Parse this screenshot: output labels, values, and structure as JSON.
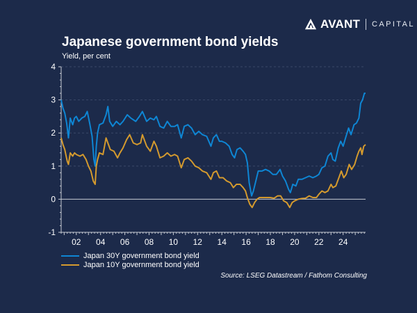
{
  "brand": {
    "name": "AVANT",
    "sub": "CAPITAL",
    "icon": "avant-logo-mark-icon"
  },
  "colors": {
    "background": "#1c2a4a",
    "series_30y": "#0e86d4",
    "series_10y": "#d49a2e",
    "zero_line": "#c8ccd4",
    "axis": "#c8ccd4",
    "grid": "#3a4868"
  },
  "chart_data": {
    "type": "line",
    "title": "Japanese government bond yields",
    "subtitle": "Yield, per cent",
    "xlabel": "",
    "ylabel": "Yield, per cent",
    "xlim": [
      2000.75,
      2025.85
    ],
    "ylim": [
      -1,
      4
    ],
    "yticks": [
      4,
      3,
      2,
      1,
      0,
      -1
    ],
    "ytick_labels": [
      "4",
      "3",
      "2",
      "1",
      "0",
      "-1"
    ],
    "xticks": [
      2002,
      2004,
      2006,
      2008,
      2010,
      2012,
      2014,
      2016,
      2018,
      2020,
      2022,
      2024
    ],
    "xtick_labels": [
      "02",
      "04",
      "06",
      "08",
      "10",
      "12",
      "14",
      "16",
      "18",
      "20",
      "22",
      "24"
    ],
    "grid": "horizontal-dashed",
    "legend_position": "bottom-left",
    "source": "Source: LSEG Datastream / Fathom Consulting",
    "series": [
      {
        "name": "Japan 30Y government bond yield",
        "color": "#0e86d4",
        "points": [
          [
            2000.75,
            3.0
          ],
          [
            2000.9,
            2.75
          ],
          [
            2001.05,
            2.6
          ],
          [
            2001.2,
            2.3
          ],
          [
            2001.35,
            1.85
          ],
          [
            2001.5,
            2.45
          ],
          [
            2001.7,
            2.25
          ],
          [
            2001.85,
            2.45
          ],
          [
            2002.0,
            2.5
          ],
          [
            2002.2,
            2.35
          ],
          [
            2002.45,
            2.45
          ],
          [
            2002.7,
            2.5
          ],
          [
            2002.9,
            2.65
          ],
          [
            2003.1,
            2.3
          ],
          [
            2003.3,
            1.9
          ],
          [
            2003.45,
            1.2
          ],
          [
            2003.55,
            1.0
          ],
          [
            2003.65,
            1.6
          ],
          [
            2003.75,
            2.0
          ],
          [
            2003.9,
            2.25
          ],
          [
            2004.2,
            2.3
          ],
          [
            2004.45,
            2.55
          ],
          [
            2004.6,
            2.8
          ],
          [
            2004.75,
            2.35
          ],
          [
            2005.0,
            2.2
          ],
          [
            2005.3,
            2.35
          ],
          [
            2005.6,
            2.25
          ],
          [
            2005.85,
            2.35
          ],
          [
            2006.2,
            2.55
          ],
          [
            2006.5,
            2.45
          ],
          [
            2006.9,
            2.35
          ],
          [
            2007.2,
            2.5
          ],
          [
            2007.45,
            2.65
          ],
          [
            2007.8,
            2.35
          ],
          [
            2008.1,
            2.45
          ],
          [
            2008.4,
            2.4
          ],
          [
            2008.6,
            2.5
          ],
          [
            2008.9,
            2.2
          ],
          [
            2009.2,
            2.15
          ],
          [
            2009.5,
            2.35
          ],
          [
            2009.8,
            2.2
          ],
          [
            2010.1,
            2.2
          ],
          [
            2010.35,
            2.25
          ],
          [
            2010.65,
            1.85
          ],
          [
            2010.9,
            2.2
          ],
          [
            2011.2,
            2.25
          ],
          [
            2011.5,
            2.15
          ],
          [
            2011.8,
            1.95
          ],
          [
            2012.1,
            2.05
          ],
          [
            2012.4,
            1.95
          ],
          [
            2012.75,
            1.9
          ],
          [
            2013.1,
            1.6
          ],
          [
            2013.3,
            1.85
          ],
          [
            2013.55,
            1.95
          ],
          [
            2013.8,
            1.75
          ],
          [
            2014.0,
            1.75
          ],
          [
            2014.3,
            1.7
          ],
          [
            2014.6,
            1.6
          ],
          [
            2014.85,
            1.35
          ],
          [
            2015.05,
            1.25
          ],
          [
            2015.25,
            1.5
          ],
          [
            2015.5,
            1.55
          ],
          [
            2015.75,
            1.45
          ],
          [
            2015.95,
            1.35
          ],
          [
            2016.1,
            1.1
          ],
          [
            2016.25,
            0.5
          ],
          [
            2016.45,
            0.1
          ],
          [
            2016.6,
            0.25
          ],
          [
            2016.8,
            0.55
          ],
          [
            2017.0,
            0.85
          ],
          [
            2017.3,
            0.85
          ],
          [
            2017.6,
            0.9
          ],
          [
            2017.9,
            0.85
          ],
          [
            2018.2,
            0.75
          ],
          [
            2018.5,
            0.75
          ],
          [
            2018.8,
            0.9
          ],
          [
            2019.0,
            0.7
          ],
          [
            2019.25,
            0.55
          ],
          [
            2019.5,
            0.3
          ],
          [
            2019.65,
            0.2
          ],
          [
            2019.85,
            0.45
          ],
          [
            2020.1,
            0.4
          ],
          [
            2020.3,
            0.6
          ],
          [
            2020.6,
            0.6
          ],
          [
            2020.9,
            0.65
          ],
          [
            2021.2,
            0.7
          ],
          [
            2021.5,
            0.65
          ],
          [
            2021.8,
            0.7
          ],
          [
            2022.0,
            0.75
          ],
          [
            2022.25,
            0.95
          ],
          [
            2022.5,
            1.0
          ],
          [
            2022.75,
            1.3
          ],
          [
            2023.0,
            1.4
          ],
          [
            2023.15,
            1.2
          ],
          [
            2023.35,
            1.15
          ],
          [
            2023.6,
            1.55
          ],
          [
            2023.8,
            1.75
          ],
          [
            2024.0,
            1.6
          ],
          [
            2024.2,
            1.85
          ],
          [
            2024.45,
            2.15
          ],
          [
            2024.65,
            1.95
          ],
          [
            2024.9,
            2.25
          ],
          [
            2025.1,
            2.3
          ],
          [
            2025.3,
            2.45
          ],
          [
            2025.45,
            2.9
          ],
          [
            2025.6,
            3.0
          ],
          [
            2025.75,
            3.2
          ],
          [
            2025.85,
            3.2
          ]
        ]
      },
      {
        "name": "Japan 10Y government bond yield",
        "color": "#d49a2e",
        "points": [
          [
            2000.75,
            1.85
          ],
          [
            2000.9,
            1.65
          ],
          [
            2001.05,
            1.5
          ],
          [
            2001.25,
            1.15
          ],
          [
            2001.35,
            1.05
          ],
          [
            2001.5,
            1.4
          ],
          [
            2001.7,
            1.3
          ],
          [
            2001.85,
            1.4
          ],
          [
            2002.0,
            1.35
          ],
          [
            2002.3,
            1.3
          ],
          [
            2002.55,
            1.35
          ],
          [
            2002.8,
            1.2
          ],
          [
            2003.0,
            1.0
          ],
          [
            2003.2,
            0.85
          ],
          [
            2003.4,
            0.55
          ],
          [
            2003.55,
            0.45
          ],
          [
            2003.65,
            1.0
          ],
          [
            2003.75,
            1.2
          ],
          [
            2003.9,
            1.4
          ],
          [
            2004.2,
            1.35
          ],
          [
            2004.45,
            1.85
          ],
          [
            2004.6,
            1.7
          ],
          [
            2004.8,
            1.5
          ],
          [
            2005.1,
            1.45
          ],
          [
            2005.4,
            1.25
          ],
          [
            2005.6,
            1.4
          ],
          [
            2005.85,
            1.55
          ],
          [
            2006.15,
            1.8
          ],
          [
            2006.4,
            1.95
          ],
          [
            2006.7,
            1.7
          ],
          [
            2007.0,
            1.65
          ],
          [
            2007.3,
            1.7
          ],
          [
            2007.45,
            1.95
          ],
          [
            2007.8,
            1.6
          ],
          [
            2008.1,
            1.45
          ],
          [
            2008.4,
            1.75
          ],
          [
            2008.6,
            1.6
          ],
          [
            2008.9,
            1.25
          ],
          [
            2009.2,
            1.3
          ],
          [
            2009.5,
            1.4
          ],
          [
            2009.8,
            1.3
          ],
          [
            2010.1,
            1.35
          ],
          [
            2010.35,
            1.3
          ],
          [
            2010.65,
            0.95
          ],
          [
            2010.9,
            1.2
          ],
          [
            2011.2,
            1.25
          ],
          [
            2011.5,
            1.15
          ],
          [
            2011.8,
            1.0
          ],
          [
            2012.1,
            0.95
          ],
          [
            2012.4,
            0.85
          ],
          [
            2012.75,
            0.8
          ],
          [
            2013.1,
            0.6
          ],
          [
            2013.3,
            0.8
          ],
          [
            2013.55,
            0.85
          ],
          [
            2013.8,
            0.65
          ],
          [
            2014.1,
            0.65
          ],
          [
            2014.4,
            0.55
          ],
          [
            2014.7,
            0.5
          ],
          [
            2014.95,
            0.35
          ],
          [
            2015.2,
            0.45
          ],
          [
            2015.5,
            0.45
          ],
          [
            2015.75,
            0.35
          ],
          [
            2015.95,
            0.25
          ],
          [
            2016.1,
            0.05
          ],
          [
            2016.3,
            -0.15
          ],
          [
            2016.5,
            -0.25
          ],
          [
            2016.7,
            -0.1
          ],
          [
            2016.9,
            0.0
          ],
          [
            2017.1,
            0.05
          ],
          [
            2017.4,
            0.05
          ],
          [
            2017.7,
            0.05
          ],
          [
            2018.0,
            0.05
          ],
          [
            2018.3,
            0.03
          ],
          [
            2018.6,
            0.1
          ],
          [
            2018.85,
            0.1
          ],
          [
            2019.1,
            -0.05
          ],
          [
            2019.35,
            -0.1
          ],
          [
            2019.6,
            -0.25
          ],
          [
            2019.8,
            -0.1
          ],
          [
            2020.0,
            -0.05
          ],
          [
            2020.3,
            0.0
          ],
          [
            2020.6,
            0.02
          ],
          [
            2020.9,
            0.03
          ],
          [
            2021.2,
            0.1
          ],
          [
            2021.5,
            0.05
          ],
          [
            2021.8,
            0.05
          ],
          [
            2022.0,
            0.15
          ],
          [
            2022.25,
            0.25
          ],
          [
            2022.5,
            0.2
          ],
          [
            2022.75,
            0.25
          ],
          [
            2023.0,
            0.45
          ],
          [
            2023.15,
            0.35
          ],
          [
            2023.4,
            0.4
          ],
          [
            2023.65,
            0.65
          ],
          [
            2023.85,
            0.85
          ],
          [
            2024.05,
            0.65
          ],
          [
            2024.25,
            0.75
          ],
          [
            2024.5,
            1.05
          ],
          [
            2024.7,
            0.9
          ],
          [
            2024.95,
            1.05
          ],
          [
            2025.15,
            1.3
          ],
          [
            2025.3,
            1.45
          ],
          [
            2025.45,
            1.55
          ],
          [
            2025.55,
            1.35
          ],
          [
            2025.7,
            1.6
          ],
          [
            2025.85,
            1.65
          ]
        ]
      }
    ]
  }
}
